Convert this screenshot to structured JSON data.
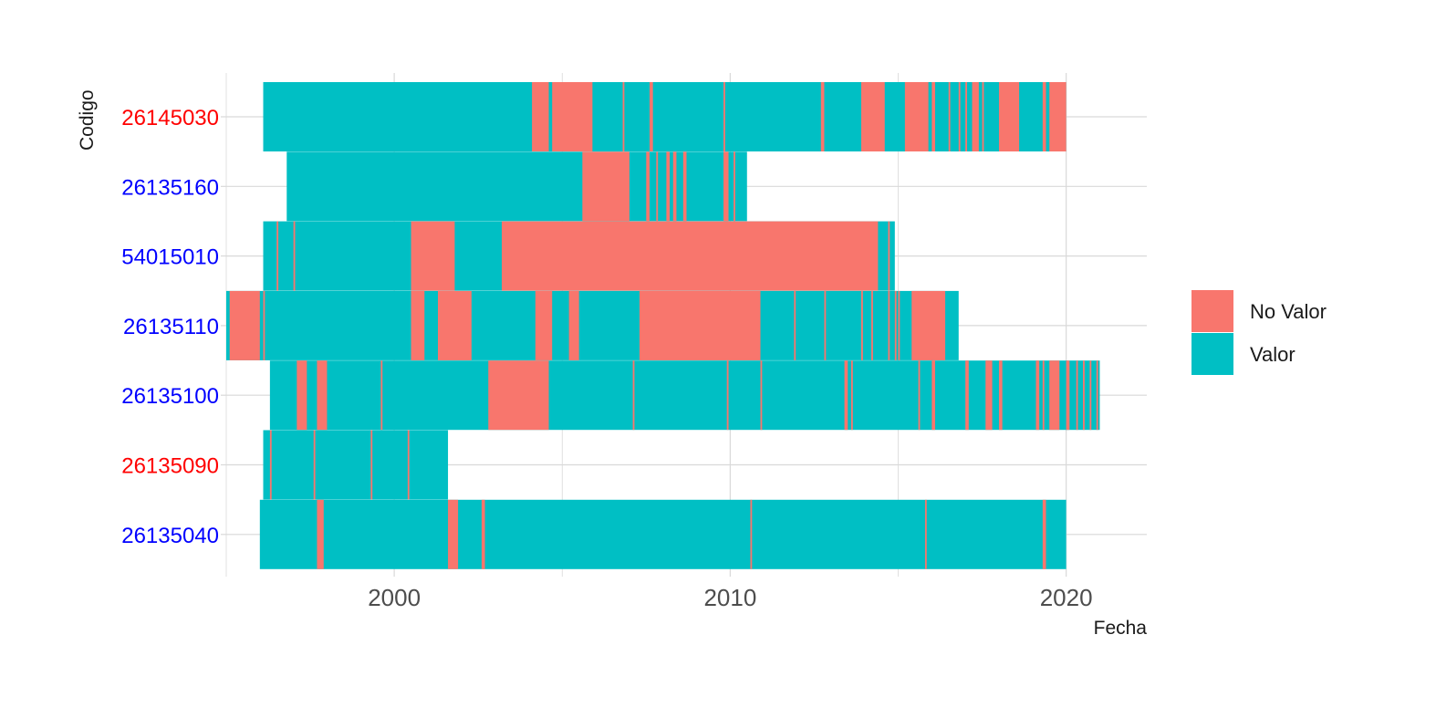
{
  "colors": {
    "no_valor": "#F8766D",
    "valor": "#00BFC4",
    "grid": "#d9d9d9",
    "label_red": "#FF0000",
    "label_blue": "#0000FF"
  },
  "chart_data": {
    "type": "heatmap",
    "xlabel": "Fecha",
    "ylabel": "Codigo",
    "xlim": [
      1995.0,
      2022.4
    ],
    "x_ticks": [
      2000,
      2010,
      2020
    ],
    "grid": true,
    "legend_position": "right",
    "legend": [
      {
        "key": "no_valor",
        "label": "No Valor"
      },
      {
        "key": "valor",
        "label": "Valor"
      }
    ],
    "rows": [
      {
        "code": "26145030",
        "label_color": "red",
        "start": 1996.1,
        "end": 2020.0,
        "no_valor": [
          [
            2004.1,
            2004.6
          ],
          [
            2004.7,
            2005.9
          ],
          [
            2006.8,
            2006.85
          ],
          [
            2007.6,
            2007.7
          ],
          [
            2009.8,
            2009.85
          ],
          [
            2012.7,
            2012.8
          ],
          [
            2013.9,
            2014.6
          ],
          [
            2015.2,
            2015.9
          ],
          [
            2016.0,
            2016.1
          ],
          [
            2016.5,
            2016.55
          ],
          [
            2016.8,
            2016.85
          ],
          [
            2017.0,
            2017.05
          ],
          [
            2017.2,
            2017.4
          ],
          [
            2017.5,
            2017.55
          ],
          [
            2018.0,
            2018.6
          ],
          [
            2019.3,
            2019.4
          ],
          [
            2019.5,
            2020.0
          ]
        ]
      },
      {
        "code": "26135160",
        "label_color": "blue",
        "start": 1996.8,
        "end": 2010.5,
        "no_valor": [
          [
            2005.6,
            2007.0
          ],
          [
            2007.5,
            2007.6
          ],
          [
            2007.8,
            2007.85
          ],
          [
            2008.1,
            2008.2
          ],
          [
            2008.3,
            2008.4
          ],
          [
            2008.6,
            2008.7
          ],
          [
            2009.8,
            2009.95
          ],
          [
            2010.1,
            2010.15
          ]
        ]
      },
      {
        "code": "54015010",
        "label_color": "blue",
        "start": 1996.1,
        "end": 2014.9,
        "no_valor": [
          [
            1996.5,
            1996.55
          ],
          [
            1997.0,
            1997.05
          ],
          [
            2000.5,
            2001.8
          ],
          [
            2003.2,
            2014.4
          ],
          [
            2014.7,
            2014.75
          ]
        ]
      },
      {
        "code": "26135110",
        "label_color": "blue",
        "start": 1995.0,
        "end": 2016.8,
        "no_valor": [
          [
            1995.1,
            1996.0
          ],
          [
            1996.1,
            1996.15
          ],
          [
            2000.5,
            2000.9
          ],
          [
            2001.3,
            2002.3
          ],
          [
            2004.2,
            2004.7
          ],
          [
            2005.2,
            2005.5
          ],
          [
            2007.3,
            2010.9
          ],
          [
            2011.9,
            2011.95
          ],
          [
            2012.8,
            2012.85
          ],
          [
            2013.9,
            2013.95
          ],
          [
            2014.2,
            2014.25
          ],
          [
            2014.7,
            2014.75
          ],
          [
            2014.9,
            2014.95
          ],
          [
            2015.0,
            2015.05
          ],
          [
            2015.4,
            2016.4
          ]
        ]
      },
      {
        "code": "26135100",
        "label_color": "blue",
        "start": 1996.3,
        "end": 2021.0,
        "no_valor": [
          [
            1997.1,
            1997.4
          ],
          [
            1997.7,
            1998.0
          ],
          [
            1999.6,
            1999.65
          ],
          [
            2002.8,
            2004.6
          ],
          [
            2007.1,
            2007.15
          ],
          [
            2009.9,
            2009.95
          ],
          [
            2010.9,
            2010.95
          ],
          [
            2013.4,
            2013.5
          ],
          [
            2013.6,
            2013.65
          ],
          [
            2015.6,
            2015.65
          ],
          [
            2016.0,
            2016.1
          ],
          [
            2017.0,
            2017.1
          ],
          [
            2017.6,
            2017.8
          ],
          [
            2018.0,
            2018.1
          ],
          [
            2019.1,
            2019.2
          ],
          [
            2019.3,
            2019.35
          ],
          [
            2019.5,
            2019.8
          ],
          [
            2020.0,
            2020.1
          ],
          [
            2020.3,
            2020.35
          ],
          [
            2020.5,
            2020.55
          ],
          [
            2020.7,
            2020.75
          ],
          [
            2020.9,
            2020.95
          ]
        ]
      },
      {
        "code": "26135090",
        "label_color": "red",
        "start": 1996.1,
        "end": 2001.6,
        "no_valor": [
          [
            1996.3,
            1996.35
          ],
          [
            1997.6,
            1997.65
          ],
          [
            1999.3,
            1999.35
          ],
          [
            2000.4,
            2000.45
          ]
        ]
      },
      {
        "code": "26135040",
        "label_color": "blue",
        "start": 1996.0,
        "end": 2020.0,
        "no_valor": [
          [
            1997.7,
            1997.9
          ],
          [
            2001.6,
            2001.9
          ],
          [
            2002.6,
            2002.7
          ],
          [
            2010.6,
            2010.65
          ],
          [
            2015.8,
            2015.85
          ],
          [
            2019.3,
            2019.4
          ]
        ]
      }
    ]
  }
}
